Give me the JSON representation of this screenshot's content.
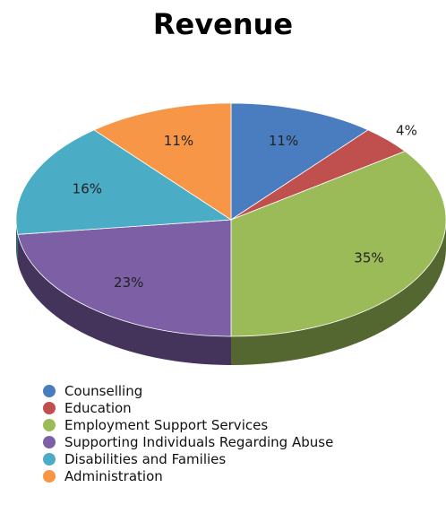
{
  "chart_data": {
    "type": "pie",
    "title": "Revenue",
    "categories": [
      "Counselling",
      "Education",
      "Employment Support Services",
      "Supporting Individuals Regarding Abuse",
      "Disabilities and Families",
      "Administration"
    ],
    "values": [
      11,
      4,
      35,
      23,
      16,
      11
    ],
    "data_labels": [
      "11%",
      "4%",
      "35%",
      "23%",
      "16%",
      "11%"
    ],
    "colors": [
      "#4a7cc0",
      "#c0504d",
      "#9bbb59",
      "#7c5fa5",
      "#4bacc6",
      "#f79646"
    ],
    "style": "3d",
    "legend_position": "bottom-left"
  }
}
